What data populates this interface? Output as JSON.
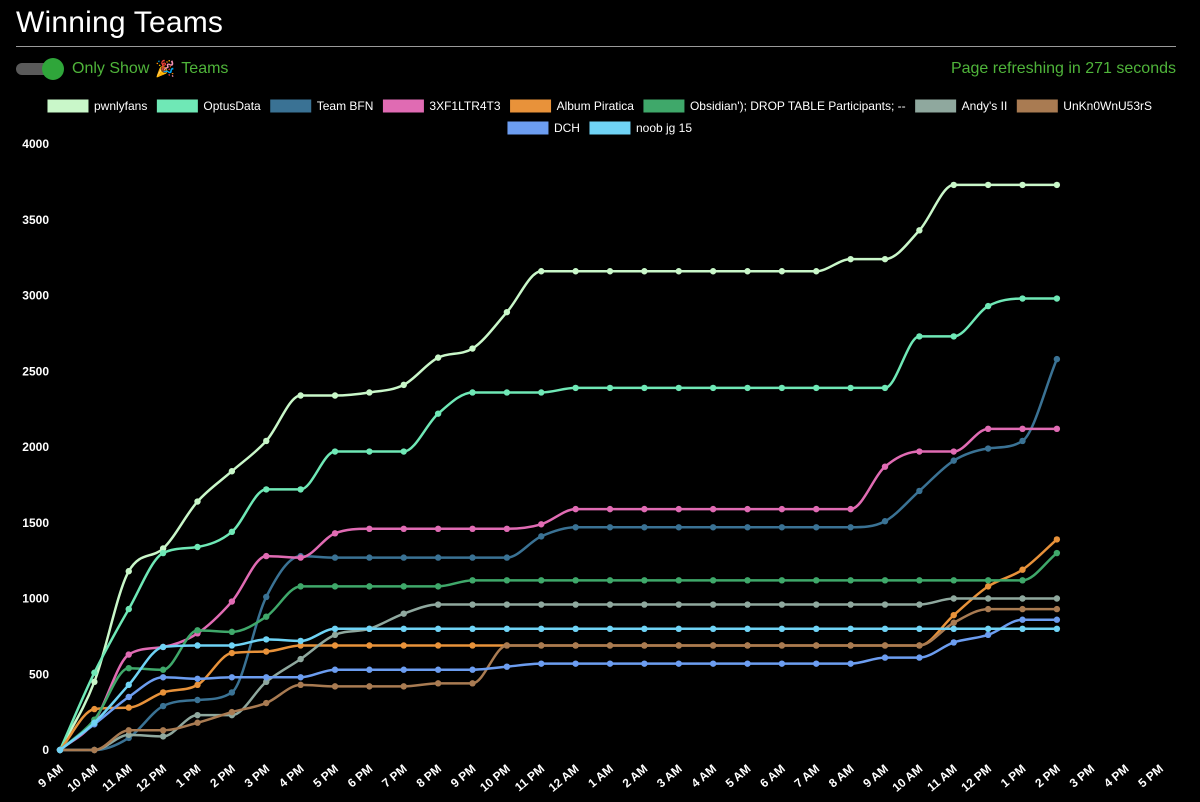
{
  "page": {
    "title": "Winning Teams",
    "toggle_label_prefix": "Only Show",
    "toggle_icon": "party-popper-icon",
    "toggle_label_suffix": "Teams",
    "refresh_text": "Page refreshing in 271 seconds",
    "accent_color": "#4fb43a"
  },
  "chart_data": {
    "type": "line",
    "title": "",
    "xlabel": "",
    "ylabel": "",
    "ylim": [
      0,
      4000
    ],
    "y_ticks": [
      "0",
      "500",
      "1000",
      "1500",
      "2000",
      "2500",
      "3000",
      "3500",
      "4000"
    ],
    "categories": [
      "9 AM",
      "10 AM",
      "11 AM",
      "12 PM",
      "1 PM",
      "2 PM",
      "3 PM",
      "4 PM",
      "5 PM",
      "6 PM",
      "7 PM",
      "8 PM",
      "9 PM",
      "10 PM",
      "11 PM",
      "12 AM",
      "1 AM",
      "2 AM",
      "3 AM",
      "4 AM",
      "5 AM",
      "6 AM",
      "7 AM",
      "8 AM",
      "9 AM",
      "10 AM",
      "11 AM",
      "12 PM",
      "1 PM",
      "2 PM",
      "3 PM",
      "4 PM",
      "5 PM"
    ],
    "x_max": 32,
    "grid": false,
    "legend_position": "top",
    "series": [
      {
        "name": "pwnlyfans",
        "color": "#c9f7c9",
        "x": [
          0,
          1,
          2,
          3,
          4,
          5,
          6,
          7,
          8,
          9,
          10,
          11,
          12,
          13,
          14,
          15,
          16,
          17,
          18,
          19,
          20,
          21,
          22,
          23,
          24,
          25,
          26,
          27,
          28,
          29
        ],
        "y": [
          0,
          450,
          1180,
          1330,
          1640,
          1840,
          2040,
          2340,
          2340,
          2360,
          2410,
          2590,
          2650,
          2890,
          3160,
          3160,
          3160,
          3160,
          3160,
          3160,
          3160,
          3160,
          3160,
          3240,
          3240,
          3430,
          3730,
          3730,
          3730,
          3730
        ]
      },
      {
        "name": "OptusData",
        "color": "#6fe8b6",
        "x": [
          0,
          1,
          2,
          3,
          4,
          5,
          6,
          7,
          8,
          9,
          10,
          11,
          12,
          13,
          14,
          15,
          16,
          17,
          18,
          19,
          20,
          21,
          22,
          23,
          24,
          25,
          26,
          27,
          28,
          29
        ],
        "y": [
          0,
          510,
          930,
          1300,
          1340,
          1440,
          1720,
          1720,
          1970,
          1970,
          1970,
          2220,
          2360,
          2360,
          2360,
          2390,
          2390,
          2390,
          2390,
          2390,
          2390,
          2390,
          2390,
          2390,
          2390,
          2730,
          2730,
          2930,
          2980,
          2980
        ]
      },
      {
        "name": "Team BFN",
        "color": "#3a7294",
        "x": [
          0,
          1,
          2,
          3,
          4,
          5,
          6,
          7,
          8,
          9,
          10,
          11,
          12,
          13,
          14,
          15,
          16,
          17,
          18,
          19,
          20,
          21,
          22,
          23,
          24,
          25,
          26,
          27,
          28,
          29
        ],
        "y": [
          0,
          0,
          80,
          290,
          330,
          380,
          1010,
          1280,
          1270,
          1270,
          1270,
          1270,
          1270,
          1270,
          1410,
          1470,
          1470,
          1470,
          1470,
          1470,
          1470,
          1470,
          1470,
          1470,
          1510,
          1710,
          1910,
          1990,
          2040,
          2580
        ]
      },
      {
        "name": "3XF1LTR4T3",
        "color": "#e06bb3",
        "x": [
          0,
          1,
          2,
          3,
          4,
          5,
          6,
          7,
          8,
          9,
          10,
          11,
          12,
          13,
          14,
          15,
          16,
          17,
          18,
          19,
          20,
          21,
          22,
          23,
          24,
          25,
          26,
          27,
          28,
          29
        ],
        "y": [
          0,
          190,
          630,
          680,
          770,
          980,
          1280,
          1270,
          1430,
          1460,
          1460,
          1460,
          1460,
          1460,
          1490,
          1590,
          1590,
          1590,
          1590,
          1590,
          1590,
          1590,
          1590,
          1590,
          1870,
          1970,
          1970,
          2120,
          2120,
          2120
        ]
      },
      {
        "name": "Album Piratica",
        "color": "#e8923a",
        "x": [
          0,
          1,
          2,
          3,
          4,
          5,
          6,
          7,
          8,
          9,
          10,
          11,
          12,
          13,
          14,
          15,
          16,
          17,
          18,
          19,
          20,
          21,
          22,
          23,
          24,
          25,
          26,
          27,
          28,
          29
        ],
        "y": [
          0,
          270,
          280,
          380,
          430,
          640,
          650,
          690,
          690,
          690,
          690,
          690,
          690,
          690,
          690,
          690,
          690,
          690,
          690,
          690,
          690,
          690,
          690,
          690,
          690,
          690,
          890,
          1080,
          1190,
          1390
        ]
      },
      {
        "name": "Obsidian'); DROP TABLE Participants; --",
        "color": "#3fa86a",
        "x": [
          0,
          1,
          2,
          3,
          4,
          5,
          6,
          7,
          8,
          9,
          10,
          11,
          12,
          13,
          14,
          15,
          16,
          17,
          18,
          19,
          20,
          21,
          22,
          23,
          24,
          25,
          26,
          27,
          28,
          29
        ],
        "y": [
          0,
          200,
          540,
          530,
          790,
          780,
          880,
          1080,
          1080,
          1080,
          1080,
          1080,
          1120,
          1120,
          1120,
          1120,
          1120,
          1120,
          1120,
          1120,
          1120,
          1120,
          1120,
          1120,
          1120,
          1120,
          1120,
          1120,
          1120,
          1300
        ]
      },
      {
        "name": "Andy's II",
        "color": "#8fa89e",
        "x": [
          0,
          1,
          2,
          3,
          4,
          5,
          6,
          7,
          8,
          9,
          10,
          11,
          12,
          13,
          14,
          15,
          16,
          17,
          18,
          19,
          20,
          21,
          22,
          23,
          24,
          25,
          26,
          27,
          28,
          29
        ],
        "y": [
          0,
          0,
          100,
          90,
          230,
          230,
          450,
          600,
          760,
          800,
          900,
          960,
          960,
          960,
          960,
          960,
          960,
          960,
          960,
          960,
          960,
          960,
          960,
          960,
          960,
          960,
          1000,
          1000,
          1000,
          1000
        ]
      },
      {
        "name": "UnKn0WnU53rS",
        "color": "#a97b52",
        "x": [
          0,
          1,
          2,
          3,
          4,
          5,
          6,
          7,
          8,
          9,
          10,
          11,
          12,
          13,
          14,
          15,
          16,
          17,
          18,
          19,
          20,
          21,
          22,
          23,
          24,
          25,
          26,
          27,
          28,
          29
        ],
        "y": [
          0,
          0,
          130,
          130,
          180,
          250,
          310,
          430,
          420,
          420,
          420,
          440,
          440,
          690,
          690,
          690,
          690,
          690,
          690,
          690,
          690,
          690,
          690,
          690,
          690,
          690,
          840,
          930,
          930,
          930
        ]
      },
      {
        "name": "DCH",
        "color": "#6c9df0",
        "x": [
          0,
          1,
          2,
          3,
          4,
          5,
          6,
          7,
          8,
          9,
          10,
          11,
          12,
          13,
          14,
          15,
          16,
          17,
          18,
          19,
          20,
          21,
          22,
          23,
          24,
          25,
          26,
          27,
          28,
          29
        ],
        "y": [
          0,
          170,
          350,
          480,
          470,
          480,
          480,
          480,
          530,
          530,
          530,
          530,
          530,
          550,
          570,
          570,
          570,
          570,
          570,
          570,
          570,
          570,
          570,
          570,
          610,
          610,
          710,
          760,
          860,
          860
        ]
      },
      {
        "name": "noob jg 15",
        "color": "#6fd3f5",
        "x": [
          0,
          1,
          2,
          3,
          4,
          5,
          6,
          7,
          8,
          9,
          10,
          11,
          12,
          13,
          14,
          15,
          16,
          17,
          18,
          19,
          20,
          21,
          22,
          23,
          24,
          25,
          26,
          27,
          28,
          29
        ],
        "y": [
          0,
          180,
          430,
          680,
          690,
          690,
          730,
          720,
          800,
          800,
          800,
          800,
          800,
          800,
          800,
          800,
          800,
          800,
          800,
          800,
          800,
          800,
          800,
          800,
          800,
          800,
          800,
          800,
          800,
          800
        ]
      }
    ]
  }
}
